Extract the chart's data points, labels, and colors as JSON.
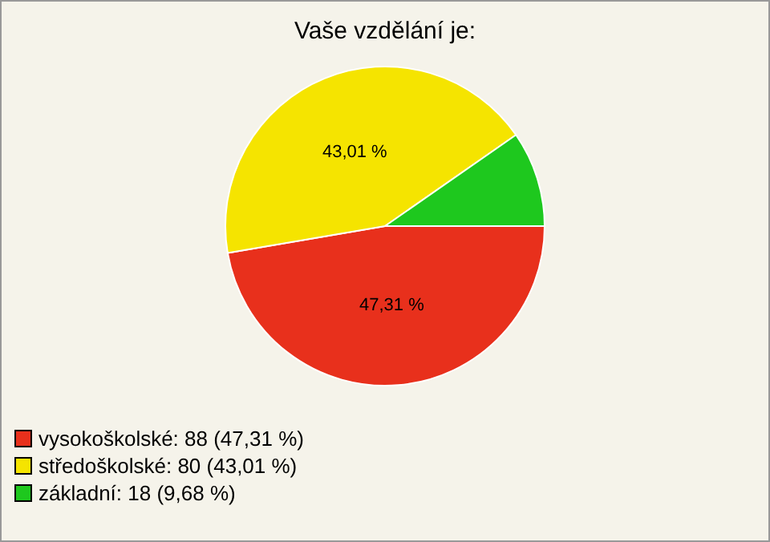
{
  "chart_data": {
    "type": "pie",
    "title": "Vaše vzdělání je:",
    "categories": [
      "vysokoškolské: 88 (47,31 %)",
      "středoškolské: 80 (43,01 %)",
      "základní: 18 (9,68 %)"
    ],
    "values": [
      47.31,
      43.01,
      9.68
    ],
    "colors": [
      "#e8301c",
      "#f5e400",
      "#1ec81e"
    ],
    "value_labels": [
      "47,31 %",
      "43,01 %",
      null
    ],
    "legend": "bottom left"
  }
}
